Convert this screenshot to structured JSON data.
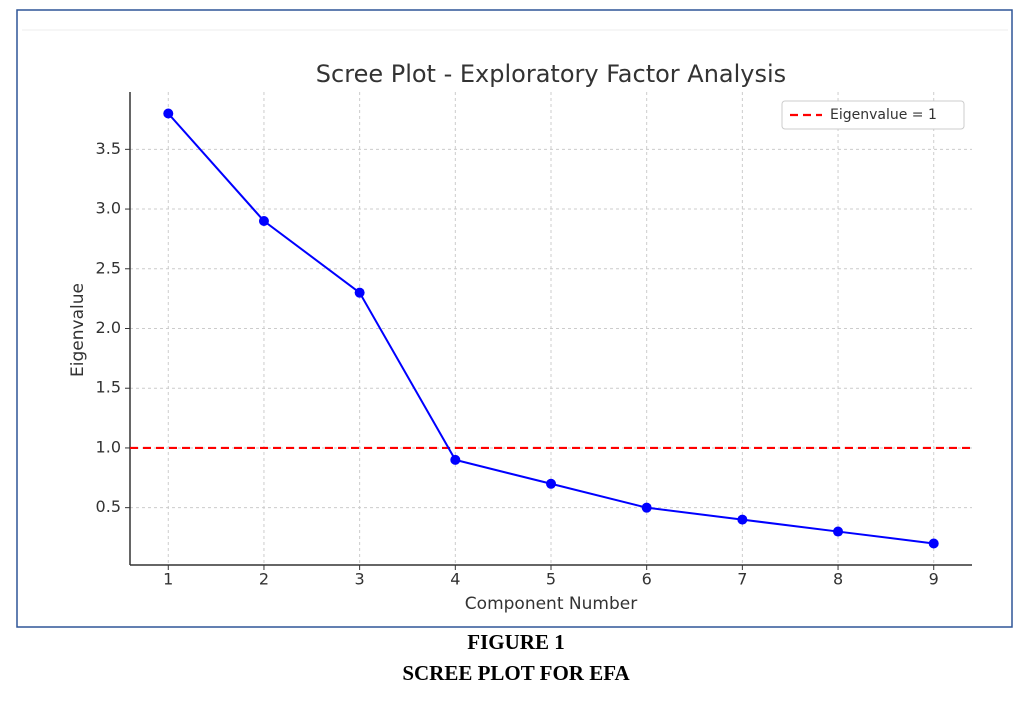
{
  "chart_data": {
    "type": "line",
    "title": "Scree Plot - Exploratory Factor Analysis",
    "xlabel": "Component Number",
    "ylabel": "Eigenvalue",
    "x": [
      1,
      2,
      3,
      4,
      5,
      6,
      7,
      8,
      9
    ],
    "values": [
      3.8,
      2.9,
      2.3,
      0.9,
      0.7,
      0.5,
      0.4,
      0.3,
      0.2
    ],
    "color": "#0000ff",
    "xlim": [
      0.6,
      9.4
    ],
    "ylim": [
      0.02,
      3.98
    ],
    "xticks": [
      1,
      2,
      3,
      4,
      5,
      6,
      7,
      8,
      9
    ],
    "yticks": [
      0.5,
      {
        "value": 1,
        "label": "1.0"
      },
      1.5,
      {
        "value": 2,
        "label": "2.0"
      },
      2.5,
      {
        "value": 3,
        "label": "3.0"
      },
      3.5
    ],
    "grid": true,
    "legend": "upper right",
    "hline": {
      "name": "Eigenvalue = 1",
      "value": 1,
      "color": "#ff0000",
      "style": "dashed"
    }
  },
  "caption": {
    "label": "FIGURE 1",
    "title": "SCREE PLOT FOR EFA"
  }
}
